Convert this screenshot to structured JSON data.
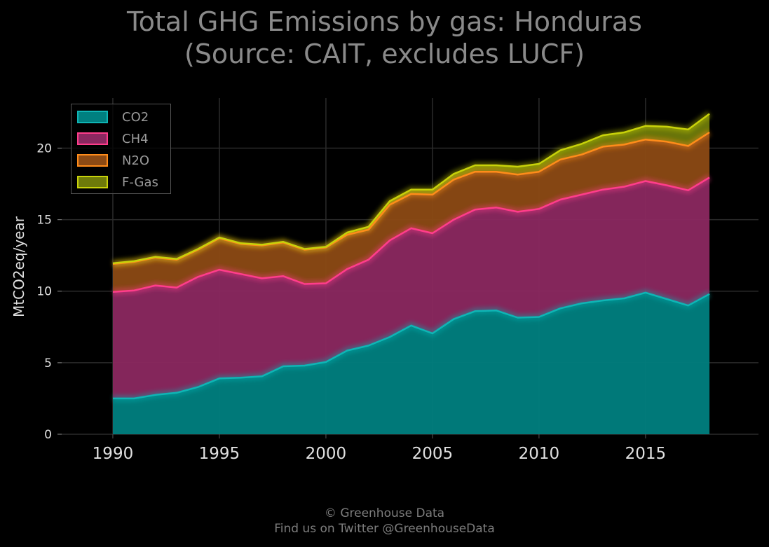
{
  "title": {
    "line1": "Total GHG Emissions by gas: Honduras",
    "line2": "(Source: CAIT, excludes LUCF)"
  },
  "footer": {
    "line1": "© Greenhouse Data",
    "line2": "Find us on Twitter @GreenhouseData"
  },
  "chart_data": {
    "type": "area",
    "stacked": true,
    "title": "Total GHG Emissions by gas: Honduras (Source: CAIT, excludes LUCF)",
    "xlabel": "",
    "ylabel": "MtCO2eq/year",
    "xlim": [
      1987.6,
      2020.3
    ],
    "ylim": [
      0,
      23.5
    ],
    "xticks": [
      1990,
      1995,
      2000,
      2005,
      2010,
      2015
    ],
    "yticks": [
      0,
      5,
      10,
      15,
      20
    ],
    "grid": true,
    "legend_position": "top-left",
    "x": [
      1990,
      1991,
      1992,
      1993,
      1994,
      1995,
      1996,
      1997,
      1998,
      1999,
      2000,
      2001,
      2002,
      2003,
      2004,
      2005,
      2006,
      2007,
      2008,
      2009,
      2010,
      2011,
      2012,
      2013,
      2014,
      2015,
      2016,
      2017,
      2018
    ],
    "series": [
      {
        "name": "CO2",
        "color": "#0fb5b5",
        "fill": "#008080",
        "values": [
          2.5,
          2.5,
          2.75,
          2.9,
          3.3,
          3.9,
          3.95,
          4.05,
          4.75,
          4.8,
          5.05,
          5.85,
          6.2,
          6.8,
          7.6,
          7.05,
          8.05,
          8.6,
          8.65,
          8.15,
          8.2,
          8.8,
          9.15,
          9.35,
          9.5,
          9.9,
          9.45,
          9.0,
          9.8
        ]
      },
      {
        "name": "CH4",
        "color": "#ff3d8b",
        "fill": "#8b2860",
        "values": [
          7.45,
          7.55,
          7.65,
          7.35,
          7.7,
          7.6,
          7.25,
          6.85,
          6.3,
          5.7,
          5.5,
          5.7,
          6.0,
          6.75,
          6.8,
          7.0,
          6.95,
          7.1,
          7.2,
          7.4,
          7.55,
          7.6,
          7.6,
          7.75,
          7.8,
          7.8,
          7.95,
          8.05,
          8.15
        ]
      },
      {
        "name": "N2O",
        "color": "#ff8c1a",
        "fill": "#8c4a14",
        "values": [
          1.95,
          2.0,
          1.95,
          1.95,
          1.9,
          2.2,
          2.1,
          2.3,
          2.35,
          2.4,
          2.5,
          2.4,
          2.1,
          2.5,
          2.4,
          2.7,
          2.8,
          2.65,
          2.5,
          2.6,
          2.6,
          2.8,
          2.8,
          3.0,
          2.95,
          2.9,
          3.05,
          3.1,
          3.15
        ]
      },
      {
        "name": "F-Gas",
        "color": "#c8d20a",
        "fill": "#6e7a0a",
        "values": [
          0.05,
          0.05,
          0.05,
          0.05,
          0.05,
          0.05,
          0.05,
          0.05,
          0.05,
          0.05,
          0.05,
          0.15,
          0.2,
          0.25,
          0.3,
          0.35,
          0.4,
          0.45,
          0.45,
          0.55,
          0.55,
          0.65,
          0.75,
          0.8,
          0.85,
          0.95,
          1.05,
          1.15,
          1.3
        ]
      }
    ]
  }
}
